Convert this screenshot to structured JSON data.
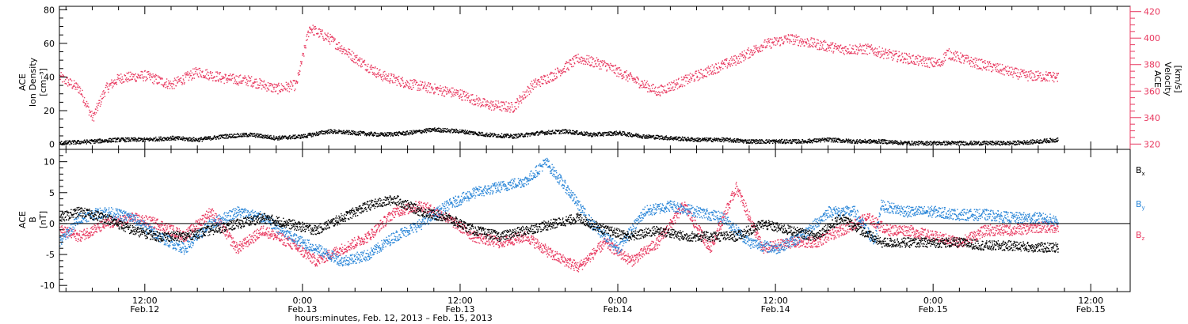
{
  "colors": {
    "density": "#000000",
    "velocity": "#e8385f",
    "bx": "#000000",
    "by": "#2a86d8",
    "bz": "#e8385f",
    "axis": "#000000",
    "background": "#ffffff"
  },
  "x_axis": {
    "title": "hours:minutes, Feb. 12, 2013 – Feb. 15, 2013",
    "range_hours": [
      5.5,
      87
    ],
    "ticks": [
      {
        "hour": 12,
        "time": "12:00",
        "date": "Feb.12"
      },
      {
        "hour": 24,
        "time": "0:00",
        "date": "Feb.13"
      },
      {
        "hour": 36,
        "time": "12:00",
        "date": "Feb.13"
      },
      {
        "hour": 48,
        "time": "0:00",
        "date": "Feb.14"
      },
      {
        "hour": 60,
        "time": "12:00",
        "date": "Feb.14"
      },
      {
        "hour": 72,
        "time": "0:00",
        "date": "Feb.15"
      },
      {
        "hour": 84,
        "time": "12:00",
        "date": "Feb.15"
      }
    ]
  },
  "chart_data": [
    {
      "type": "scatter",
      "panel": "top",
      "ylabel_left": [
        "ACE",
        "Ion Density",
        "[cm⁻³]"
      ],
      "ylabel_right": [
        "ACE",
        "Velocity",
        "[km/s]"
      ],
      "ylim_left": [
        -3,
        82
      ],
      "yticks_left": [
        0,
        20,
        40,
        60,
        80
      ],
      "ylim_right": [
        316,
        424
      ],
      "yticks_right": [
        320,
        340,
        360,
        380,
        400,
        420
      ],
      "series": [
        {
          "axis": "left",
          "x_hours": [
            5.5,
            8,
            10,
            12,
            14,
            16,
            18,
            20,
            22,
            24,
            26,
            28,
            30,
            32,
            34,
            36,
            38,
            40,
            42,
            44,
            46,
            48,
            50,
            52,
            54,
            56,
            58,
            60,
            62,
            64,
            66,
            68,
            70,
            72,
            74,
            76,
            78,
            80,
            81.5
          ],
          "y": [
            1,
            2,
            3,
            3,
            4,
            3,
            5,
            6,
            4,
            5,
            8,
            7,
            6,
            7,
            9,
            8,
            6,
            5,
            7,
            8,
            6,
            7,
            5,
            4,
            3,
            3,
            2,
            2,
            2,
            3,
            2,
            2,
            1,
            1,
            1,
            1,
            1,
            2,
            3
          ]
        },
        {
          "axis": "right",
          "x_hours": [
            5.5,
            7,
            8,
            9,
            10,
            12,
            14,
            16,
            18,
            20,
            22,
            23.5,
            24.5,
            26,
            28,
            30,
            32,
            34,
            36,
            38,
            40,
            41.5,
            43,
            45,
            47,
            49,
            51,
            53,
            55,
            57,
            59,
            61,
            63,
            65,
            67,
            69,
            71,
            72.5,
            73,
            75,
            77,
            79,
            81.5
          ],
          "y": [
            371,
            362,
            340,
            362,
            370,
            372,
            365,
            375,
            370,
            368,
            362,
            365,
            408,
            400,
            385,
            372,
            366,
            362,
            358,
            350,
            348,
            365,
            372,
            385,
            380,
            370,
            360,
            368,
            376,
            384,
            395,
            400,
            396,
            392,
            392,
            387,
            383,
            381,
            389,
            382,
            377,
            372,
            371
          ]
        }
      ]
    },
    {
      "type": "scatter",
      "panel": "bottom",
      "ylabel_left": [
        "ACE",
        "B",
        "[nT]"
      ],
      "ylim": [
        -11,
        12
      ],
      "yticks": [
        -10,
        -5,
        0,
        5,
        10
      ],
      "zero_line": true,
      "legend": [
        {
          "label": "B",
          "sub": "x"
        },
        {
          "label": "B",
          "sub": "y"
        },
        {
          "label": "B",
          "sub": "z"
        }
      ],
      "series": [
        {
          "name": "Bx",
          "x_hours": [
            5.5,
            7,
            9,
            11,
            13,
            15,
            17,
            19,
            21,
            23,
            25,
            27,
            29,
            31,
            33,
            35,
            37,
            39,
            41,
            43,
            45,
            47,
            49,
            51,
            53,
            55,
            57,
            59,
            61,
            63,
            65,
            66.5,
            68,
            70,
            72,
            74,
            76,
            78,
            80,
            81.5
          ],
          "y": [
            1,
            2,
            1,
            -1,
            -2,
            -2,
            -1,
            0,
            1,
            0,
            -1,
            1,
            3,
            4,
            2,
            1,
            -1,
            -2,
            -1,
            0,
            1,
            -1,
            -2,
            -1,
            -2,
            -2,
            -2,
            0,
            -1,
            -2,
            1,
            -1,
            -3,
            -3,
            -3,
            -3,
            -3.5,
            -3.5,
            -3.8,
            -3.8
          ]
        },
        {
          "name": "By",
          "x_hours": [
            5.5,
            7,
            9,
            11,
            13,
            15,
            17,
            19,
            21,
            23,
            25,
            27,
            29,
            31,
            33,
            35,
            37,
            39,
            41,
            42.5,
            44,
            46,
            48,
            50,
            52,
            54,
            56,
            58,
            60,
            62,
            64,
            66,
            67.5,
            68,
            70,
            72,
            74,
            76,
            78,
            80,
            81.5
          ],
          "y": [
            -3,
            1,
            2,
            1,
            -2,
            -4,
            0,
            2,
            1,
            -2,
            -4,
            -6,
            -5,
            -2,
            0,
            3,
            5,
            6,
            7,
            10,
            6,
            0,
            -4,
            2,
            3,
            2,
            1,
            -3,
            -4,
            -2,
            2,
            2,
            -3,
            3,
            2,
            2,
            1.5,
            1.5,
            1,
            1,
            0.5
          ]
        },
        {
          "name": "Bz",
          "x_hours": [
            5.5,
            7,
            9,
            11,
            13,
            15,
            17,
            19,
            21,
            23,
            25,
            27,
            29,
            31,
            33,
            35,
            37,
            39,
            41,
            43,
            45,
            47,
            49,
            51,
            53,
            55,
            57,
            59,
            61,
            63,
            65,
            67,
            68.5,
            70,
            72,
            74,
            76,
            78,
            80,
            81.5
          ],
          "y": [
            -1,
            -2,
            0,
            1,
            0,
            -2,
            2,
            -4,
            -1,
            -3,
            -6,
            -4,
            -2,
            2,
            3,
            1,
            -2,
            -3,
            -2,
            -5,
            -7,
            -3,
            -6,
            -3,
            3,
            -4,
            6,
            -4,
            -3,
            -3,
            -1,
            1,
            -1,
            -1,
            -2,
            -3,
            -1,
            -1,
            -0.5,
            -0.5
          ]
        }
      ]
    }
  ]
}
